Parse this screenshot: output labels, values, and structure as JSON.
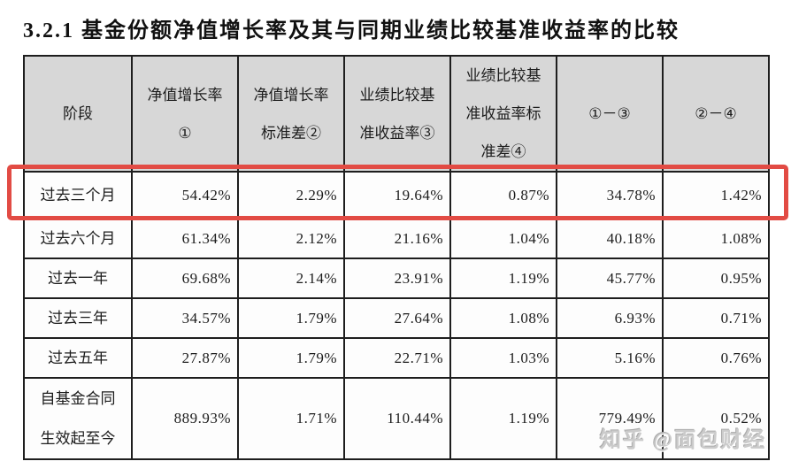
{
  "page": {
    "title": "3.2.1 基金份额净值增长率及其与同期业绩比较基准收益率的比较",
    "watermark": "知乎 @面包财经"
  },
  "colors": {
    "header_bg": "#d7d7d7",
    "cell_bg": "#fdfdfd",
    "border": "#1e1e1e",
    "highlight_red": "#e24b44",
    "watermark_gray": "#cbcbcb"
  },
  "table": {
    "columns": [
      {
        "lines": [
          "阶段"
        ]
      },
      {
        "lines": [
          "净值增长率",
          "①"
        ]
      },
      {
        "lines": [
          "净值增长率",
          "标准差②"
        ]
      },
      {
        "lines": [
          "业绩比较基",
          "准收益率③"
        ]
      },
      {
        "lines": [
          "业绩比较基",
          "准收益率标",
          "准差④"
        ]
      },
      {
        "lines": [
          "①－③"
        ]
      },
      {
        "lines": [
          "②－④"
        ]
      }
    ],
    "rows": [
      {
        "label_lines": [
          "过去三个月"
        ],
        "highlighted": true,
        "values": [
          "54.42%",
          "2.29%",
          "19.64%",
          "0.87%",
          "34.78%",
          "1.42%"
        ]
      },
      {
        "label_lines": [
          "过去六个月"
        ],
        "highlighted": false,
        "values": [
          "61.34%",
          "2.12%",
          "21.16%",
          "1.04%",
          "40.18%",
          "1.08%"
        ]
      },
      {
        "label_lines": [
          "过去一年"
        ],
        "highlighted": false,
        "values": [
          "69.68%",
          "2.14%",
          "23.91%",
          "1.19%",
          "45.77%",
          "0.95%"
        ]
      },
      {
        "label_lines": [
          "过去三年"
        ],
        "highlighted": false,
        "values": [
          "34.57%",
          "1.79%",
          "27.64%",
          "1.08%",
          "6.93%",
          "0.71%"
        ]
      },
      {
        "label_lines": [
          "过去五年"
        ],
        "highlighted": false,
        "values": [
          "27.87%",
          "1.79%",
          "22.71%",
          "1.03%",
          "5.16%",
          "0.76%"
        ]
      },
      {
        "label_lines": [
          "自基金合同",
          "生效起至今"
        ],
        "highlighted": false,
        "values": [
          "889.93%",
          "1.71%",
          "110.44%",
          "1.19%",
          "779.49%",
          "0.52%"
        ]
      }
    ]
  }
}
